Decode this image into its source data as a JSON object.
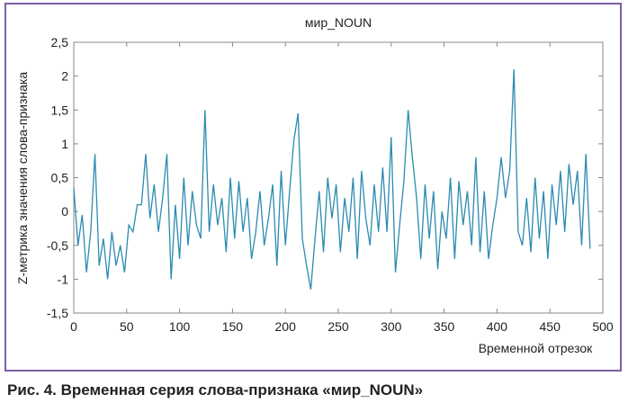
{
  "chart_data": {
    "type": "line",
    "title": "мир_NOUN",
    "ylabel": "Z-метрика значения слова-признака",
    "xlabel": "Временной отрезок",
    "caption": "Рис. 4. Временная серия слова-признака «мир_NOUN»",
    "xlim": [
      0,
      500
    ],
    "xticks": [
      0,
      50,
      100,
      150,
      200,
      250,
      300,
      350,
      400,
      450,
      500
    ],
    "ylim": [
      -1.5,
      2.5
    ],
    "yticks": [
      {
        "value": -1.5,
        "label": "-1,5"
      },
      -1,
      {
        "value": -0.5,
        "label": "-0,5"
      },
      0,
      {
        "value": 0.5,
        "label": "0,5"
      },
      1,
      {
        "value": 1.5,
        "label": "1,5"
      },
      2,
      {
        "value": 2.5,
        "label": "2,5"
      }
    ],
    "grid": false,
    "color": "#2b8bb0",
    "x": [
      0,
      4,
      8,
      12,
      16,
      20,
      24,
      28,
      32,
      36,
      40,
      44,
      48,
      52,
      56,
      60,
      64,
      68,
      72,
      76,
      80,
      84,
      88,
      92,
      96,
      100,
      104,
      108,
      112,
      116,
      120,
      124,
      128,
      132,
      136,
      140,
      144,
      148,
      152,
      156,
      160,
      164,
      168,
      172,
      176,
      180,
      184,
      188,
      192,
      196,
      200,
      204,
      208,
      212,
      216,
      220,
      224,
      228,
      232,
      236,
      240,
      244,
      248,
      252,
      256,
      260,
      264,
      268,
      272,
      276,
      280,
      284,
      288,
      292,
      296,
      300,
      304,
      308,
      312,
      316,
      320,
      324,
      328,
      332,
      336,
      340,
      344,
      348,
      352,
      356,
      360,
      364,
      368,
      372,
      376,
      380,
      384,
      388,
      392,
      396,
      400,
      404,
      408,
      412,
      416,
      420,
      424,
      428,
      432,
      436,
      440,
      444,
      448,
      452,
      456,
      460,
      464,
      468,
      472,
      476,
      480,
      484,
      488
    ],
    "values": [
      0.35,
      -0.5,
      -0.05,
      -0.9,
      -0.3,
      0.85,
      -0.8,
      -0.4,
      -1.0,
      -0.3,
      -0.8,
      -0.5,
      -0.9,
      -0.2,
      -0.3,
      0.1,
      0.1,
      0.85,
      -0.1,
      0.4,
      -0.3,
      0.2,
      0.85,
      -1.0,
      0.1,
      -0.7,
      0.5,
      -0.5,
      0.3,
      -0.2,
      -0.4,
      1.5,
      -0.3,
      0.4,
      -0.2,
      0.2,
      -0.6,
      0.5,
      -0.4,
      0.45,
      -0.3,
      0.2,
      -0.7,
      -0.3,
      0.3,
      -0.5,
      -0.1,
      0.4,
      -0.8,
      0.6,
      -0.5,
      0.3,
      1.05,
      1.45,
      -0.4,
      -0.8,
      -1.15,
      -0.4,
      0.3,
      -0.6,
      0.5,
      -0.1,
      0.4,
      -0.6,
      0.2,
      -0.3,
      0.5,
      -0.7,
      0.6,
      -0.1,
      -0.5,
      0.4,
      -0.3,
      0.65,
      -0.3,
      1.1,
      -0.9,
      -0.2,
      0.45,
      1.5,
      0.8,
      0.2,
      -0.7,
      0.4,
      -0.4,
      0.3,
      -0.85,
      0.0,
      -0.4,
      0.5,
      -0.7,
      0.45,
      -0.2,
      0.3,
      -0.5,
      0.8,
      -0.6,
      0.3,
      -0.7,
      -0.2,
      0.2,
      0.8,
      0.2,
      0.6,
      2.1,
      -0.3,
      -0.5,
      0.2,
      -0.6,
      0.5,
      -0.4,
      0.3,
      -0.7,
      0.4,
      -0.2,
      0.6,
      -0.3,
      0.7,
      0.1,
      0.6,
      -0.5,
      0.85,
      -0.55
    ]
  }
}
